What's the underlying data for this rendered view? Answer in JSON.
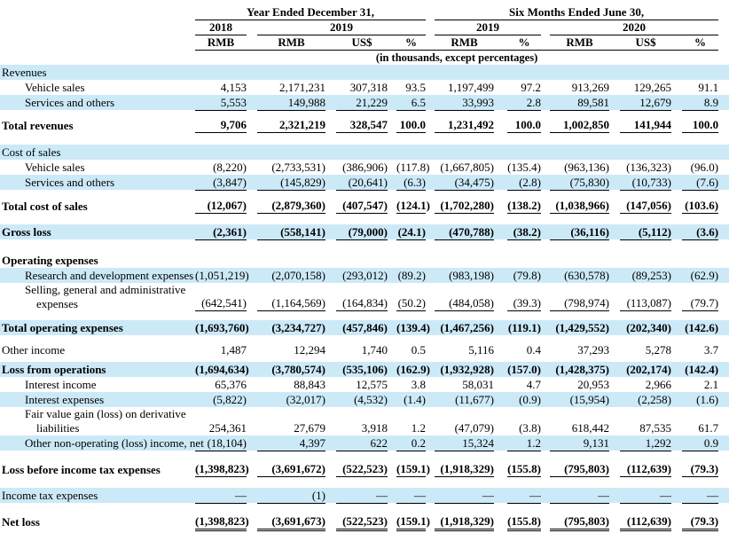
{
  "colors": {
    "highlight": "#cce9f8",
    "text": "#000000"
  },
  "table": {
    "header": {
      "group1": "Year Ended December 31,",
      "group2": "Six Months Ended June 30,",
      "years": [
        "2018",
        "2019",
        "2019",
        "2020"
      ],
      "columns": [
        "RMB",
        "RMB",
        "US$",
        "%",
        "RMB",
        "%",
        "RMB",
        "US$",
        "%"
      ],
      "units_note": "(in thousands, except percentages)"
    },
    "rows": [
      {
        "label": [
          "Revenues"
        ],
        "indent": 0,
        "blue": true,
        "bold": false,
        "underline": "none",
        "values": [
          "",
          "",
          "",
          "",
          "",
          "",
          "",
          "",
          ""
        ]
      },
      {
        "label": [
          "Vehicle sales"
        ],
        "indent": 1,
        "blue": false,
        "bold": false,
        "underline": "none",
        "values": [
          "4,153",
          "2,171,231",
          "307,318",
          "93.5",
          "1,197,499",
          "97.2",
          "913,269",
          "129,265",
          "91.1"
        ]
      },
      {
        "label": [
          "Services and others"
        ],
        "indent": 1,
        "blue": true,
        "bold": false,
        "underline": "single",
        "values": [
          "5,553",
          "149,988",
          "21,229",
          "6.5",
          "33,993",
          "2.8",
          "89,581",
          "12,679",
          "8.9"
        ]
      },
      {
        "spacer": 8
      },
      {
        "label": [
          "Total revenues"
        ],
        "indent": 0,
        "blue": false,
        "bold": true,
        "underline": "single",
        "values": [
          "9,706",
          "2,321,219",
          "328,547",
          "100.0",
          "1,231,492",
          "100.0",
          "1,002,850",
          "141,944",
          "100.0"
        ]
      },
      {
        "spacer": 13
      },
      {
        "label": [
          "Cost of sales"
        ],
        "indent": 0,
        "blue": true,
        "bold": false,
        "underline": "none",
        "values": [
          "",
          "",
          "",
          "",
          "",
          "",
          "",
          "",
          ""
        ]
      },
      {
        "label": [
          "Vehicle sales"
        ],
        "indent": 1,
        "blue": false,
        "bold": false,
        "underline": "none",
        "values": [
          "(8,220)",
          "(2,733,531)",
          "(386,906)",
          "(117.8)",
          "(1,667,805)",
          "(135.4)",
          "(963,136)",
          "(136,323)",
          "(96.0)"
        ]
      },
      {
        "label": [
          "Services and others"
        ],
        "indent": 1,
        "blue": true,
        "bold": false,
        "underline": "single",
        "values": [
          "(3,847)",
          "(145,829)",
          "(20,641)",
          "(6.3)",
          "(34,475)",
          "(2.8)",
          "(75,830)",
          "(10,733)",
          "(7.6)"
        ]
      },
      {
        "spacer": 9
      },
      {
        "label": [
          "Total cost of sales"
        ],
        "indent": 0,
        "blue": false,
        "bold": true,
        "underline": "single",
        "values": [
          "(12,067)",
          "(2,879,360)",
          "(407,547)",
          "(124.1)",
          "(1,702,280)",
          "(138.2)",
          "(1,038,966)",
          "(147,056)",
          "(103.6)"
        ]
      },
      {
        "spacer": 12
      },
      {
        "label": [
          "Gross loss"
        ],
        "indent": 0,
        "blue": true,
        "bold": true,
        "underline": "single",
        "values": [
          "(2,361)",
          "(558,141)",
          "(79,000)",
          "(24.1)",
          "(470,788)",
          "(38.2)",
          "(36,116)",
          "(5,112)",
          "(3.6)"
        ]
      },
      {
        "spacer": 14
      },
      {
        "label": [
          "Operating expenses"
        ],
        "indent": 0,
        "blue": false,
        "bold": true,
        "underline": "none",
        "values": [
          "",
          "",
          "",
          "",
          "",
          "",
          "",
          "",
          ""
        ]
      },
      {
        "label": [
          "Research and development expenses"
        ],
        "indent": 1,
        "blue": true,
        "bold": false,
        "underline": "none",
        "values": [
          "(1,051,219)",
          "(2,070,158)",
          "(293,012)",
          "(89.2)",
          "(983,198)",
          "(79.8)",
          "(630,578)",
          "(89,253)",
          "(62.9)"
        ]
      },
      {
        "label": [
          "Selling, general and administrative",
          "expenses"
        ],
        "indent": 1,
        "blue": false,
        "bold": false,
        "underline": "single",
        "values": [
          "(642,541)",
          "(1,164,569)",
          "(164,834)",
          "(50.2)",
          "(484,058)",
          "(39.3)",
          "(798,974)",
          "(113,087)",
          "(79.7)"
        ]
      },
      {
        "spacer": 10
      },
      {
        "label": [
          "Total operating expenses"
        ],
        "indent": 0,
        "blue": true,
        "bold": true,
        "underline": "none",
        "values": [
          "(1,693,760)",
          "(3,234,727)",
          "(457,846)",
          "(139.4)",
          "(1,467,256)",
          "(119.1)",
          "(1,429,552)",
          "(202,340)",
          "(142.6)"
        ]
      },
      {
        "spacer": 8
      },
      {
        "label": [
          "Other income"
        ],
        "indent": 0,
        "blue": false,
        "bold": false,
        "underline": "none",
        "values": [
          "1,487",
          "12,294",
          "1,740",
          "0.5",
          "5,116",
          "0.4",
          "37,293",
          "5,278",
          "3.7"
        ]
      },
      {
        "spacer": 5
      },
      {
        "label": [
          "Loss from operations"
        ],
        "indent": 0,
        "blue": true,
        "bold": true,
        "underline": "none",
        "values": [
          "(1,694,634)",
          "(3,780,574)",
          "(535,106)",
          "(162.9)",
          "(1,932,928)",
          "(157.0)",
          "(1,428,375)",
          "(202,174)",
          "(142.4)"
        ]
      },
      {
        "label": [
          "Interest income"
        ],
        "indent": 1,
        "blue": false,
        "bold": false,
        "underline": "none",
        "values": [
          "65,376",
          "88,843",
          "12,575",
          "3.8",
          "58,031",
          "4.7",
          "20,953",
          "2,966",
          "2.1"
        ]
      },
      {
        "label": [
          "Interest expenses"
        ],
        "indent": 1,
        "blue": true,
        "bold": false,
        "underline": "none",
        "values": [
          "(5,822)",
          "(32,017)",
          "(4,532)",
          "(1.4)",
          "(11,677)",
          "(0.9)",
          "(15,954)",
          "(2,258)",
          "(1.6)"
        ]
      },
      {
        "label": [
          "Fair value gain (loss) on derivative",
          "liabilities"
        ],
        "indent": 1,
        "blue": false,
        "bold": false,
        "underline": "none",
        "values": [
          "254,361",
          "27,679",
          "3,918",
          "1.2",
          "(47,079)",
          "(3.8)",
          "618,442",
          "87,535",
          "61.7"
        ]
      },
      {
        "label": [
          "Other non-operating (loss) income, net"
        ],
        "indent": 1,
        "blue": true,
        "bold": false,
        "underline": "single",
        "values": [
          "(18,104)",
          "4,397",
          "622",
          "0.2",
          "15,324",
          "1.2",
          "9,131",
          "1,292",
          "0.9"
        ]
      },
      {
        "spacer": 12
      },
      {
        "label": [
          "Loss before income tax expenses"
        ],
        "indent": 0,
        "blue": false,
        "bold": true,
        "underline": "single",
        "values": [
          "(1,398,823)",
          "(3,691,672)",
          "(522,523)",
          "(159.1)",
          "(1,918,329)",
          "(155.8)",
          "(795,803)",
          "(112,639)",
          "(79.3)"
        ]
      },
      {
        "spacer": 12
      },
      {
        "label": [
          "Income tax expenses"
        ],
        "indent": 0,
        "blue": true,
        "bold": false,
        "underline": "single",
        "values": [
          "—",
          "(1)",
          "—",
          "—",
          "—",
          "—",
          "—",
          "—",
          "—"
        ]
      },
      {
        "spacer": 12
      },
      {
        "label": [
          "Net loss"
        ],
        "indent": 0,
        "blue": false,
        "bold": true,
        "underline": "double",
        "values": [
          "(1,398,823)",
          "(3,691,673)",
          "(522,523)",
          "(159.1)",
          "(1,918,329)",
          "(155.8)",
          "(795,803)",
          "(112,639)",
          "(79.3)"
        ]
      }
    ]
  }
}
